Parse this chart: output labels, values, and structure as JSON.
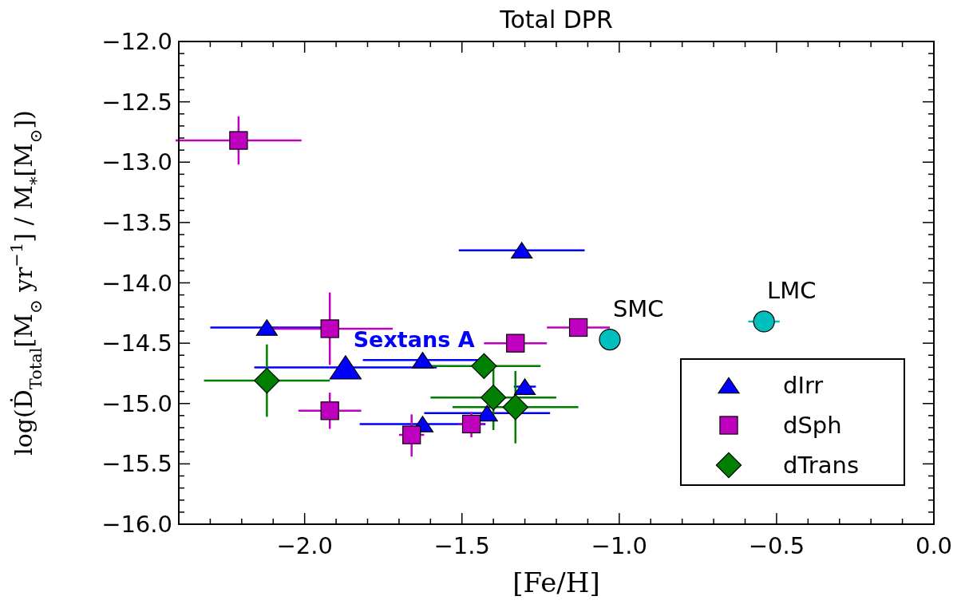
{
  "chart_data": {
    "type": "scatter",
    "title": "Total DPR",
    "xlabel": "[Fe/H]",
    "ylabel": "log(Ḋ$_{Total}$[M$_{⊙}$ yr$^{−1}$] / M$_{*}$[M$_{⊙}$])",
    "xlim": [
      -2.4,
      0
    ],
    "ylim": [
      -16,
      -12
    ],
    "xticks": [
      {
        "value": -2.4,
        "label": null
      },
      {
        "value": -2.3,
        "label": null
      },
      {
        "value": -2.2,
        "label": null
      },
      {
        "value": -2.1,
        "label": null
      },
      {
        "value": -2,
        "label": "−2.0"
      },
      {
        "value": -1.9,
        "label": null
      },
      {
        "value": -1.8,
        "label": null
      },
      {
        "value": -1.7,
        "label": null
      },
      {
        "value": -1.6,
        "label": null
      },
      {
        "value": -1.5,
        "label": "−1.5"
      },
      {
        "value": -1.4,
        "label": null
      },
      {
        "value": -1.3,
        "label": null
      },
      {
        "value": -1.2,
        "label": null
      },
      {
        "value": -1.1,
        "label": null
      },
      {
        "value": -1,
        "label": "−1.0"
      },
      {
        "value": -0.9,
        "label": null
      },
      {
        "value": -0.8,
        "label": null
      },
      {
        "value": -0.7,
        "label": null
      },
      {
        "value": -0.6,
        "label": null
      },
      {
        "value": -0.5,
        "label": "−0.5"
      },
      {
        "value": -0.4,
        "label": null
      },
      {
        "value": -0.3,
        "label": null
      },
      {
        "value": -0.2,
        "label": null
      },
      {
        "value": -0.1,
        "label": null
      },
      {
        "value": 0,
        "label": "0.0"
      }
    ],
    "yticks": [
      {
        "value": -16,
        "label": "−16.0"
      },
      {
        "value": -15.9,
        "label": null
      },
      {
        "value": -15.8,
        "label": null
      },
      {
        "value": -15.7,
        "label": null
      },
      {
        "value": -15.6,
        "label": null
      },
      {
        "value": -15.5,
        "label": "−15.5"
      },
      {
        "value": -15.4,
        "label": null
      },
      {
        "value": -15.3,
        "label": null
      },
      {
        "value": -15.2,
        "label": null
      },
      {
        "value": -15.1,
        "label": null
      },
      {
        "value": -15,
        "label": "−15.0"
      },
      {
        "value": -14.9,
        "label": null
      },
      {
        "value": -14.8,
        "label": null
      },
      {
        "value": -14.7,
        "label": null
      },
      {
        "value": -14.6,
        "label": null
      },
      {
        "value": -14.5,
        "label": "−14.5"
      },
      {
        "value": -14.4,
        "label": null
      },
      {
        "value": -14.3,
        "label": null
      },
      {
        "value": -14.2,
        "label": null
      },
      {
        "value": -14.1,
        "label": null
      },
      {
        "value": -14,
        "label": "−14.0"
      },
      {
        "value": -13.9,
        "label": null
      },
      {
        "value": -13.8,
        "label": null
      },
      {
        "value": -13.7,
        "label": null
      },
      {
        "value": -13.6,
        "label": null
      },
      {
        "value": -13.5,
        "label": "−13.5"
      },
      {
        "value": -13.4,
        "label": null
      },
      {
        "value": -13.3,
        "label": null
      },
      {
        "value": -13.2,
        "label": null
      },
      {
        "value": -13.1,
        "label": null
      },
      {
        "value": -13,
        "label": "−13.0"
      },
      {
        "value": -12.9,
        "label": null
      },
      {
        "value": -12.8,
        "label": null
      },
      {
        "value": -12.7,
        "label": null
      },
      {
        "value": -12.6,
        "label": null
      },
      {
        "value": -12.5,
        "label": "−12.5"
      },
      {
        "value": -12.4,
        "label": null
      },
      {
        "value": -12.3,
        "label": null
      },
      {
        "value": -12.2,
        "label": null
      },
      {
        "value": -12.1,
        "label": null
      },
      {
        "value": -12,
        "label": "−12.0"
      }
    ],
    "legend": "bottom right",
    "grid": false,
    "series": [
      {
        "name": "dIrr",
        "color": "#0000ff",
        "marker": "triangle",
        "x": [
          -2.12,
          -1.625,
          -1.625,
          -1.42,
          -1.3,
          -1.31
        ],
        "values": [
          -14.37,
          -14.64,
          -15.17,
          -15.08,
          -14.86,
          -13.73
        ],
        "xerrors": [
          0.18,
          0.19,
          0.2,
          0.2,
          0.035,
          0.2
        ]
      },
      {
        "name": "Sextans A",
        "color": "#0000ff",
        "marker": "triangle",
        "x": [
          -1.87
        ],
        "values": [
          -14.7
        ],
        "xerrors": [
          0.29
        ]
      },
      {
        "name": "dSph",
        "color": "#bf00bf",
        "marker": "square",
        "x": [
          -2.21,
          -1.92,
          -1.92,
          -1.66,
          -1.47,
          -1.33,
          -1.13
        ],
        "values": [
          -12.82,
          -14.38,
          -15.06,
          -15.26,
          -15.17,
          -14.5,
          -14.37
        ],
        "xerrors": [
          0.2,
          0.2,
          0.1,
          0.04,
          0.04,
          0.1,
          0.1
        ],
        "errors": [
          0.2,
          0.3,
          0.15,
          [
            -15.44,
            -15.09
          ],
          [
            -15.28,
            -15.07
          ],
          null,
          null
        ]
      },
      {
        "name": "dTrans",
        "color": "#007f00",
        "marker": "diamond",
        "x": [
          -2.12,
          -1.43,
          -1.4,
          -1.33
        ],
        "values": [
          -14.81,
          -14.69,
          -14.95,
          -15.03
        ],
        "xerrors": [
          0.2,
          0.18,
          0.2,
          0.2
        ],
        "errors": [
          0.3,
          null,
          0.27,
          0.3
        ]
      },
      {
        "color": "#00bfbf",
        "marker": "circle",
        "x": [
          -1.03,
          -0.54
        ],
        "values": [
          -14.47,
          -14.32
        ],
        "xerrors": [
          null,
          0.05
        ]
      }
    ],
    "annotations": [
      {
        "text": "SMC",
        "x": -1.03,
        "y": -14.47
      },
      {
        "text": "LMC",
        "x": -0.54,
        "y": -14.32
      }
    ]
  }
}
